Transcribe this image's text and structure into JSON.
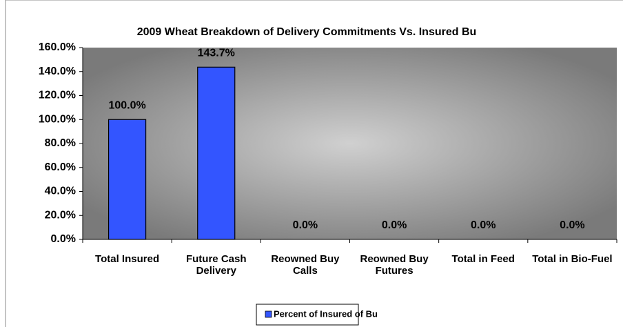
{
  "chart_data": {
    "type": "bar",
    "title": "2009 Wheat Breakdown of Delivery Commitments Vs. Insured Bu",
    "categories": [
      "Total Insured",
      "Future Cash Delivery",
      "Reowned Buy Calls",
      "Reowned Buy Futures",
      "Total in Feed",
      "Total in Bio-Fuel"
    ],
    "series": [
      {
        "name": "Percent of Insured of Bu",
        "color": "#3355ff",
        "values": [
          100,
          143.7,
          0,
          0,
          0,
          0
        ],
        "value_labels": [
          "100.0%",
          "143.7%",
          "0.0%",
          "0.0%",
          "0.0%",
          "0.0%"
        ]
      }
    ],
    "ylim": [
      0,
      160
    ],
    "yticks": [
      {
        "value": 0,
        "label": "0.0%"
      },
      {
        "value": 20,
        "label": "20.0%"
      },
      {
        "value": 40,
        "label": "40.0%"
      },
      {
        "value": 60,
        "label": "60.0%"
      },
      {
        "value": 80,
        "label": "80.0%"
      },
      {
        "value": 100,
        "label": "100.0%"
      },
      {
        "value": 120,
        "label": "120.0%"
      },
      {
        "value": 140,
        "label": "140.0%"
      },
      {
        "value": 160,
        "label": "160.0%"
      }
    ],
    "legend": "bottom"
  }
}
